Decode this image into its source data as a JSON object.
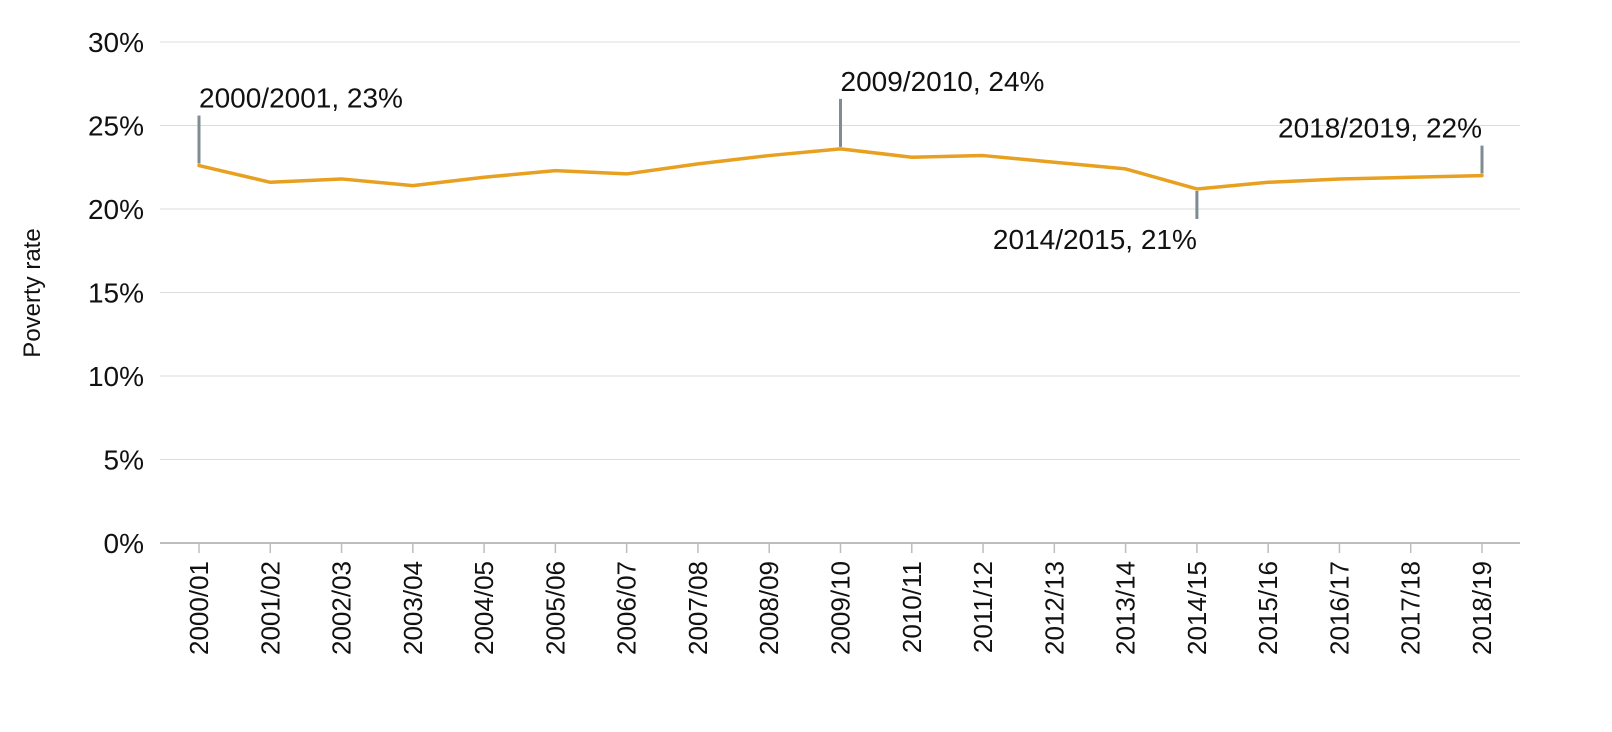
{
  "chart_data": {
    "type": "line",
    "title": "",
    "xlabel": "",
    "ylabel": "Poverty rate",
    "ylim": [
      0,
      30
    ],
    "yticks": [
      0,
      5,
      10,
      15,
      20,
      25,
      30
    ],
    "ytick_labels": [
      "0%",
      "5%",
      "10%",
      "15%",
      "20%",
      "25%",
      "30%"
    ],
    "grid": true,
    "legend": "none",
    "categories": [
      "2000/01",
      "2001/02",
      "2002/03",
      "2003/04",
      "2004/05",
      "2005/06",
      "2006/07",
      "2007/08",
      "2008/09",
      "2009/10",
      "2010/11",
      "2011/12",
      "2012/13",
      "2013/14",
      "2014/15",
      "2015/16",
      "2016/17",
      "2017/18",
      "2018/19"
    ],
    "series": [
      {
        "color": "#E8A020",
        "values": [
          22.6,
          21.6,
          21.8,
          21.4,
          21.9,
          22.3,
          22.1,
          22.7,
          23.2,
          23.6,
          23.1,
          23.2,
          22.8,
          22.4,
          21.2,
          21.6,
          21.8,
          21.9,
          22.0
        ]
      }
    ],
    "annotations": [
      {
        "index": 0,
        "text": "2000/2001, 23%",
        "direction": "up"
      },
      {
        "index": 9,
        "text": "2009/2010, 24%",
        "direction": "up"
      },
      {
        "index": 14,
        "text": "2014/2015, 21%",
        "direction": "down"
      },
      {
        "index": 18,
        "text": "2018/2019, 22%",
        "direction": "up"
      }
    ],
    "colors": {
      "line": "#E8A020",
      "leader": "#7F8C93",
      "grid": "#DCDCDC",
      "axis": "#BDBDBD"
    }
  }
}
